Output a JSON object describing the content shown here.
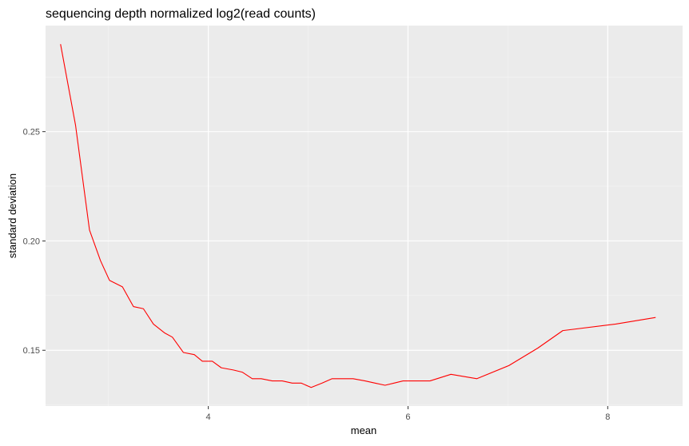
{
  "chart_data": {
    "type": "line",
    "title": "sequencing  depth  normalized  log2(read  counts)",
    "xlabel": "mean",
    "ylabel": "standard  deviation",
    "xlim": [
      2.37,
      8.75
    ],
    "ylim": [
      0.1245,
      0.2985
    ],
    "x_ticks": [
      4,
      6,
      8
    ],
    "x_minor_ticks": [
      3,
      5,
      7
    ],
    "y_ticks": [
      0.15,
      0.2,
      0.25
    ],
    "y_tick_labels": [
      "0.15",
      "0.20",
      "0.25"
    ],
    "y_minor_ticks": [
      0.125,
      0.175,
      0.225,
      0.275
    ],
    "x_tick_labels": [
      "4",
      "6",
      "8"
    ],
    "grid": true,
    "legend": "none",
    "series": [
      {
        "color": "#ff0000",
        "points": [
          [
            2.52,
            0.29
          ],
          [
            2.67,
            0.253
          ],
          [
            2.81,
            0.205
          ],
          [
            2.92,
            0.191
          ],
          [
            3.01,
            0.182
          ],
          [
            3.14,
            0.179
          ],
          [
            3.25,
            0.17
          ],
          [
            3.35,
            0.169
          ],
          [
            3.45,
            0.162
          ],
          [
            3.56,
            0.158
          ],
          [
            3.64,
            0.156
          ],
          [
            3.75,
            0.149
          ],
          [
            3.86,
            0.148
          ],
          [
            3.94,
            0.145
          ],
          [
            4.04,
            0.145
          ],
          [
            4.13,
            0.142
          ],
          [
            4.25,
            0.141
          ],
          [
            4.34,
            0.14
          ],
          [
            4.44,
            0.137
          ],
          [
            4.53,
            0.137
          ],
          [
            4.64,
            0.136
          ],
          [
            4.74,
            0.136
          ],
          [
            4.84,
            0.135
          ],
          [
            4.93,
            0.135
          ],
          [
            5.03,
            0.133
          ],
          [
            5.14,
            0.135
          ],
          [
            5.24,
            0.137
          ],
          [
            5.35,
            0.137
          ],
          [
            5.45,
            0.137
          ],
          [
            5.57,
            0.136
          ],
          [
            5.67,
            0.135
          ],
          [
            5.77,
            0.134
          ],
          [
            5.86,
            0.135
          ],
          [
            5.95,
            0.136
          ],
          [
            6.07,
            0.136
          ],
          [
            6.22,
            0.136
          ],
          [
            6.43,
            0.139
          ],
          [
            6.69,
            0.137
          ],
          [
            7.01,
            0.143
          ],
          [
            7.3,
            0.151
          ],
          [
            7.55,
            0.159
          ],
          [
            8.08,
            0.162
          ],
          [
            8.48,
            0.165
          ]
        ]
      }
    ]
  },
  "colors": {
    "panel_background": "#ebebeb",
    "grid_major": "#ffffff",
    "line": "#ff0000",
    "axis_text": "#4d4d4d",
    "title_text": "#000000"
  }
}
